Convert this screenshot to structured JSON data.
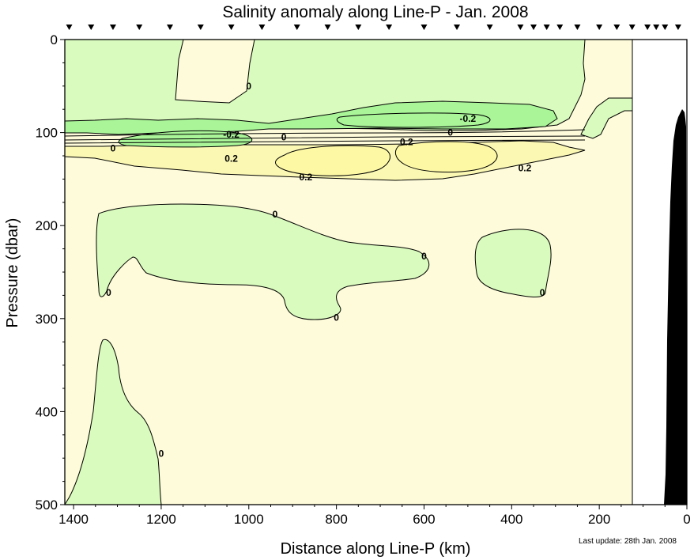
{
  "chart_data": {
    "type": "contour",
    "title": "Salinity anomaly along Line-P - Jan. 2008",
    "xlabel": "Distance along Line-P (km)",
    "ylabel": "Pressure (dbar)",
    "xlim": [
      1420,
      0
    ],
    "ylim": [
      500,
      0
    ],
    "x_ticks": [
      1400,
      1200,
      1000,
      800,
      600,
      400,
      200,
      0
    ],
    "y_ticks": [
      0,
      100,
      200,
      300,
      400,
      500
    ],
    "station_markers_km": [
      1410,
      1360,
      1310,
      1250,
      1180,
      1110,
      1040,
      970,
      890,
      820,
      750,
      680,
      600,
      525,
      450,
      380,
      350,
      320,
      290,
      250,
      200,
      160,
      125,
      90,
      70,
      50,
      20
    ],
    "data_extent_km": [
      1420,
      125
    ],
    "contour_levels": [
      -0.2,
      0,
      0.2
    ],
    "contour_labels": [
      {
        "text": "0",
        "x": 1000,
        "y": 50
      },
      {
        "text": "-0.2",
        "x": 1040,
        "y": 102
      },
      {
        "text": "-0.2",
        "x": 500,
        "y": 85
      },
      {
        "text": "0",
        "x": 920,
        "y": 105
      },
      {
        "text": "0",
        "x": 1310,
        "y": 117
      },
      {
        "text": "0",
        "x": 540,
        "y": 100
      },
      {
        "text": "0.2",
        "x": 640,
        "y": 110
      },
      {
        "text": "0.2",
        "x": 1040,
        "y": 128
      },
      {
        "text": "0.2",
        "x": 870,
        "y": 148
      },
      {
        "text": "0.2",
        "x": 370,
        "y": 138
      },
      {
        "text": "0",
        "x": 940,
        "y": 188
      },
      {
        "text": "0",
        "x": 600,
        "y": 233
      },
      {
        "text": "0",
        "x": 1320,
        "y": 272
      },
      {
        "text": "0",
        "x": 330,
        "y": 272
      },
      {
        "text": "0",
        "x": 800,
        "y": 299
      },
      {
        "text": "0",
        "x": 1200,
        "y": 445
      }
    ],
    "bathymetry_color": "#000000",
    "colors": {
      "le_-0.2": "#a9f598",
      "-0.2_0": "#d9fbbd",
      "0_0.2": "#fdfbd9",
      "ge_0.2": "#fbf8b4",
      "land": "#ffffff"
    },
    "footnote": "Last update: 28th Jan. 2008"
  }
}
